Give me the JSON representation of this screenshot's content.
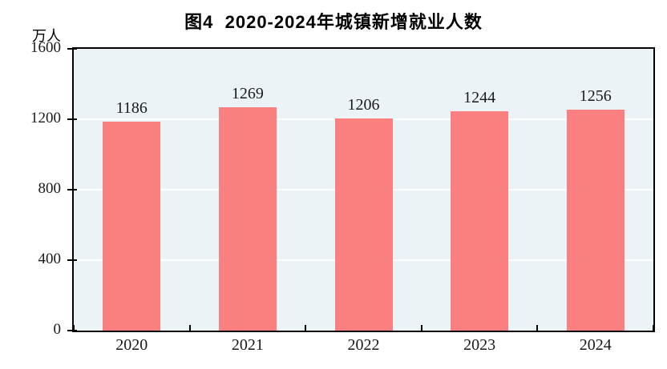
{
  "title": "图4  2020-2024年城镇新增就业人数",
  "unit_label": "万人",
  "colors": {
    "bar": "#FA8080",
    "plot_background": "#ECF3F7",
    "gridline": "#FFFFFF",
    "axis": "#000000",
    "text": "#1a1a1a"
  },
  "chart_data": {
    "type": "bar",
    "title": "图4  2020-2024年城镇新增就业人数",
    "categories": [
      "2020",
      "2021",
      "2022",
      "2023",
      "2024"
    ],
    "values": [
      1186,
      1269,
      1206,
      1244,
      1256
    ],
    "xlabel": "",
    "ylabel": "万人",
    "ylim": [
      0,
      1600
    ],
    "yticks": [
      0,
      400,
      800,
      1200,
      1600
    ],
    "grid": "horizontal",
    "legend_position": "none",
    "data_labels": true
  }
}
